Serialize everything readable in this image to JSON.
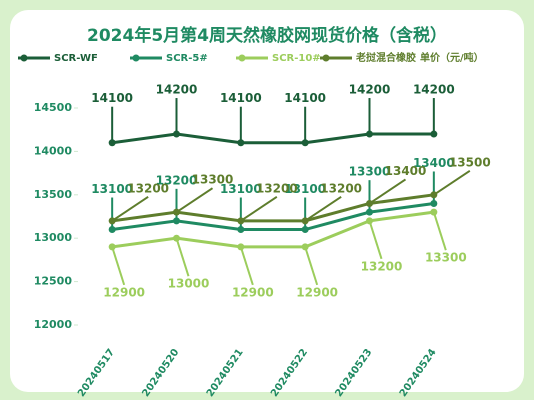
{
  "chart_data": {
    "type": "line",
    "title": "2024年5月第4周天然橡胶网现货价格（含税）",
    "y_label": "单价（元/吨）",
    "categories": [
      "20240517",
      "20240520",
      "20240521",
      "20240522",
      "20240523",
      "20240524"
    ],
    "series": [
      {
        "name": "SCR-WF",
        "color": "#1b5e38",
        "values": [
          14100,
          14200,
          14100,
          14100,
          14200,
          14200
        ]
      },
      {
        "name": "SCR-5#",
        "color": "#1f8a62",
        "values": [
          13100,
          13200,
          13100,
          13100,
          13300,
          13400
        ]
      },
      {
        "name": "SCR-10#",
        "color": "#9ccd5c",
        "values": [
          12900,
          13000,
          12900,
          12900,
          13200,
          13300
        ]
      },
      {
        "name": "老挝混合橡胶",
        "color": "#5e7d2c",
        "values": [
          13200,
          13300,
          13200,
          13200,
          13400,
          13500
        ]
      }
    ],
    "ylim": [
      12000,
      14500
    ],
    "yticks": [
      12000,
      12500,
      13000,
      13500,
      14000,
      14500
    ]
  }
}
